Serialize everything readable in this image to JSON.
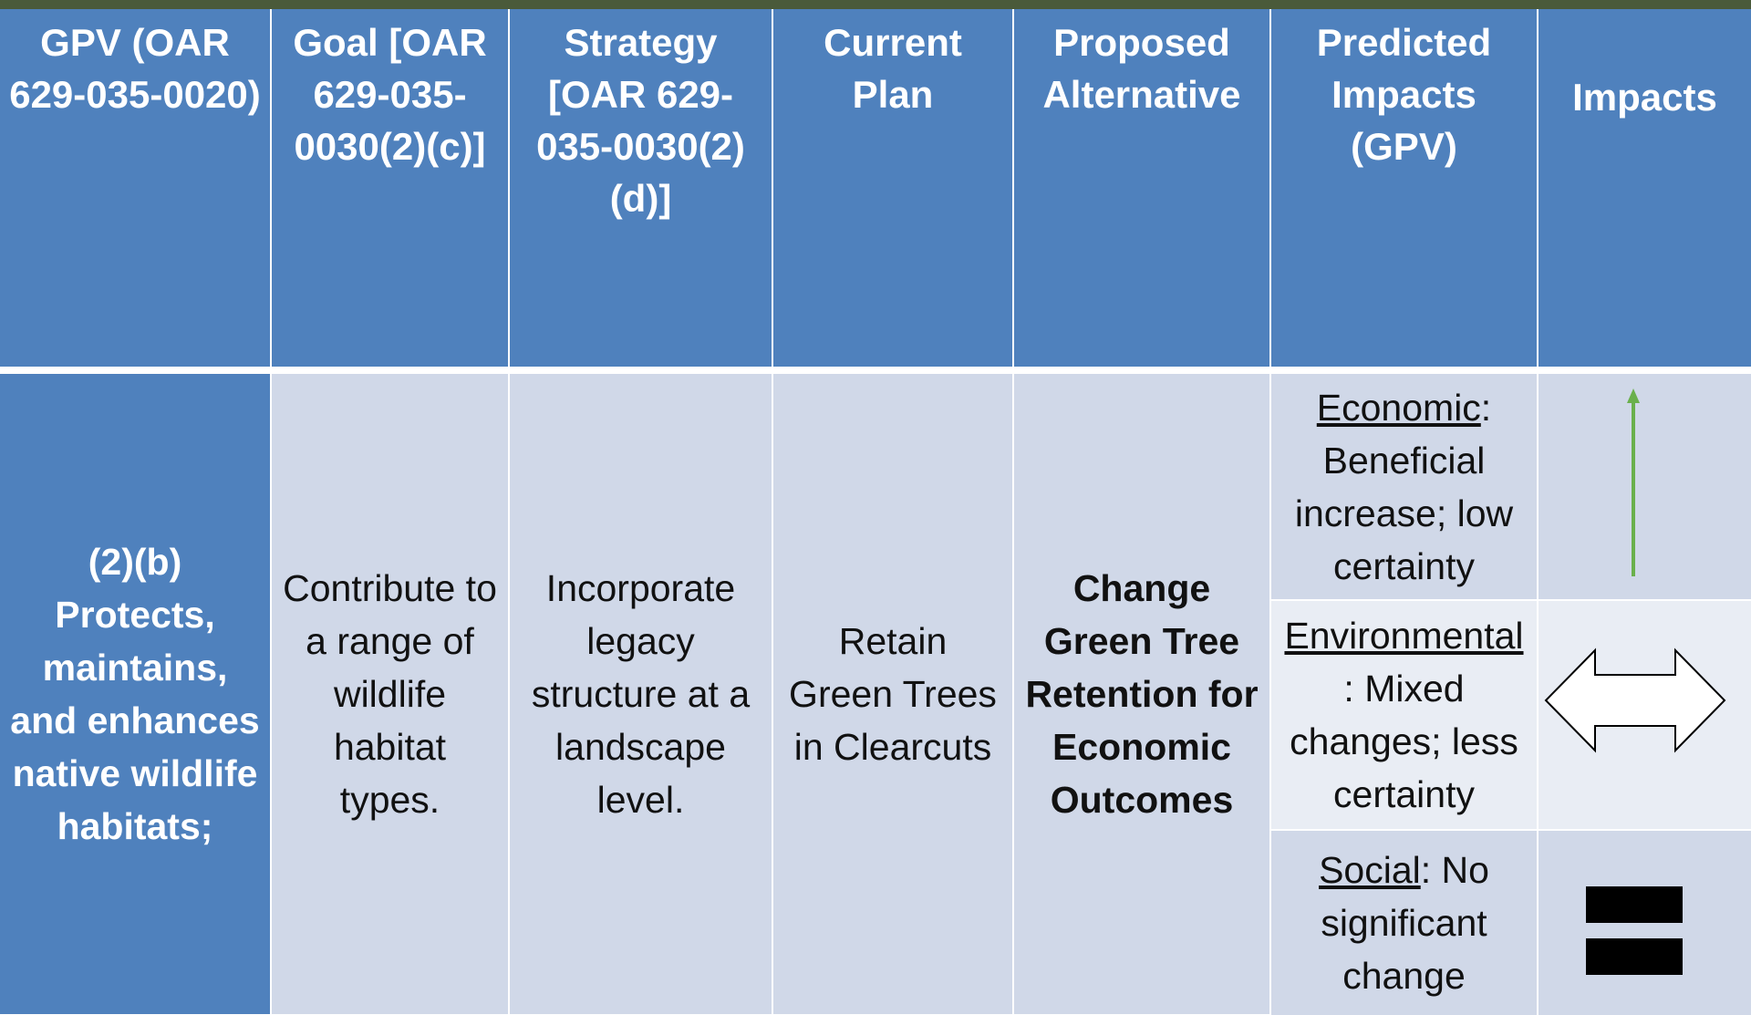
{
  "table": {
    "headers": [
      "GPV (OAR 629-035-0020)",
      "Goal [OAR 629-035-0030(2)(c)]",
      "Strategy [OAR 629-035-0030(2)(d)]",
      "Current Plan",
      "Proposed Alternative",
      "Predicted Impacts (GPV)",
      "Impacts"
    ],
    "row": {
      "gpv": "(2)(b) Protects, maintains, and enhances native wildlife habitats;",
      "goal": "Contribute to a range of wildlife habitat types.",
      "strategy": "Incorporate legacy structure at a landscape level.",
      "current_plan": "Retain Green Trees in Clearcuts",
      "proposed_alternative": "Change Green Tree Retention for Economic Outcomes",
      "impacts": [
        {
          "category": "Economic",
          "description": ": Beneficial increase; low certainty"
        },
        {
          "category": "Environmental",
          "description": ": Mixed changes; less certainty"
        },
        {
          "category": "Social",
          "description": ": No significant change"
        }
      ]
    }
  }
}
